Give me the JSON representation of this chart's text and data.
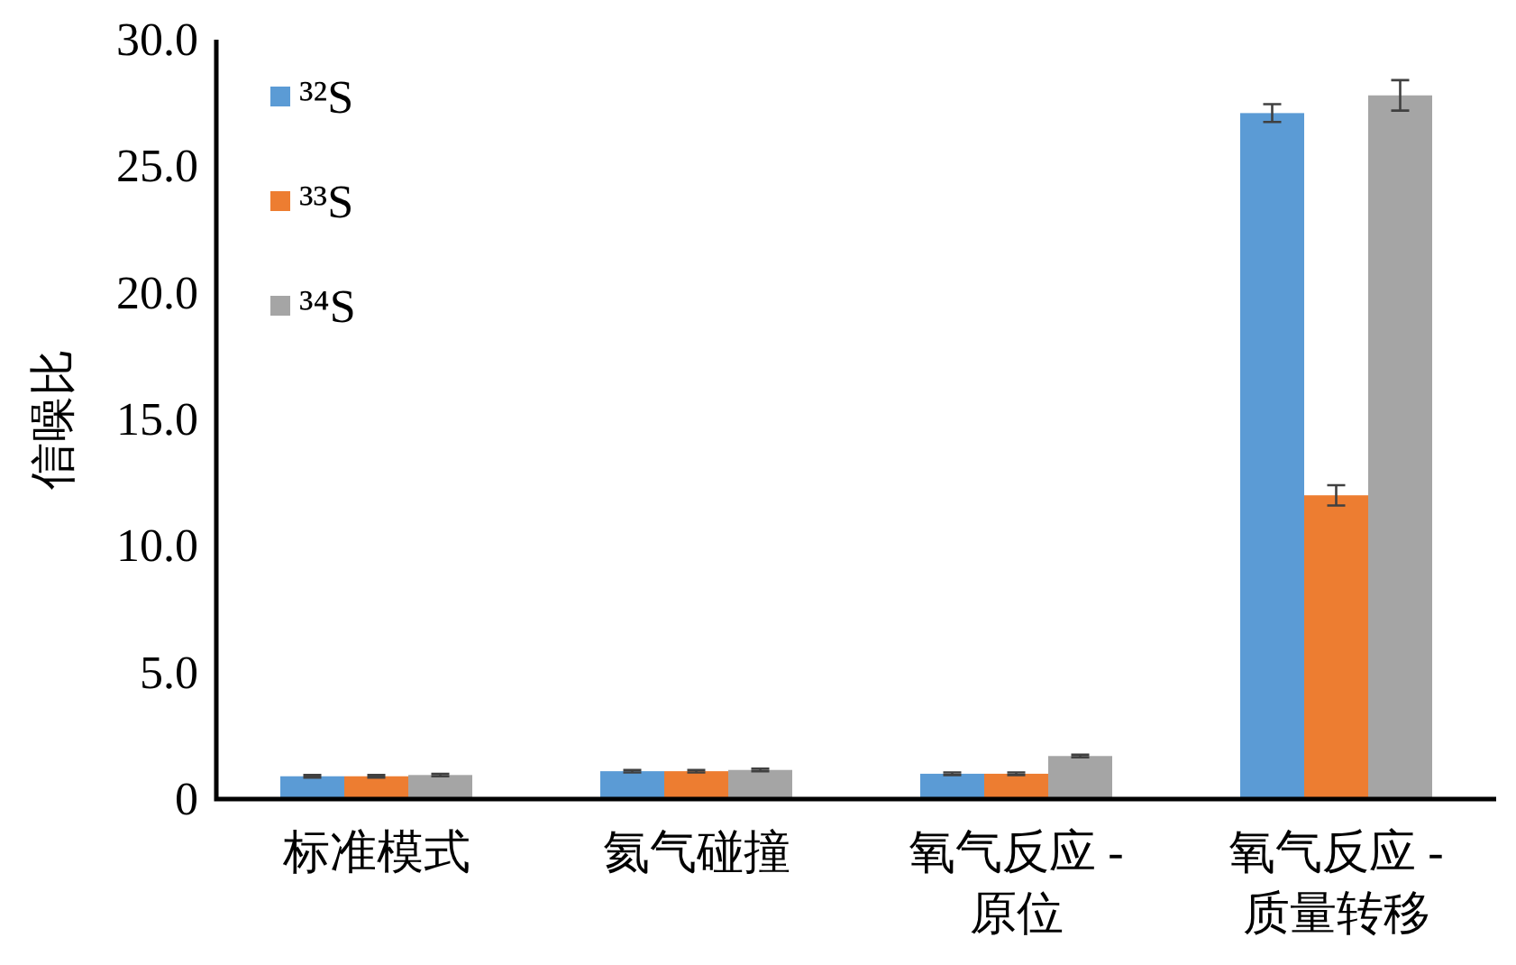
{
  "chart_data": {
    "type": "bar",
    "ylabel": "信噪比",
    "categories": [
      "标准模式",
      "氦气碰撞",
      "氧气反应 -\n原位",
      "氧气反应 -\n质量转移"
    ],
    "series": [
      {
        "name": "³²S",
        "color": "#5b9bd5",
        "values": [
          0.9,
          1.1,
          1.0,
          27.1
        ],
        "errors": [
          0.05,
          0.05,
          0.05,
          0.35
        ]
      },
      {
        "name": "³³S",
        "color": "#ed7d31",
        "values": [
          0.9,
          1.1,
          1.0,
          12.0
        ],
        "errors": [
          0.05,
          0.05,
          0.05,
          0.4
        ]
      },
      {
        "name": "³⁴S",
        "color": "#a5a5a5",
        "values": [
          0.95,
          1.15,
          1.7,
          27.8
        ],
        "errors": [
          0.05,
          0.05,
          0.05,
          0.6
        ]
      }
    ],
    "ylim": [
      0,
      30
    ],
    "yticks": [
      {
        "value": 0,
        "label": "0"
      },
      {
        "value": 5,
        "label": "5.0"
      },
      {
        "value": 10,
        "label": "10.0"
      },
      {
        "value": 15,
        "label": "15.0"
      },
      {
        "value": 20,
        "label": "20.0"
      },
      {
        "value": 25,
        "label": "25.0"
      },
      {
        "value": 30,
        "label": "30.0"
      }
    ],
    "legend": "top left",
    "grid": false
  }
}
